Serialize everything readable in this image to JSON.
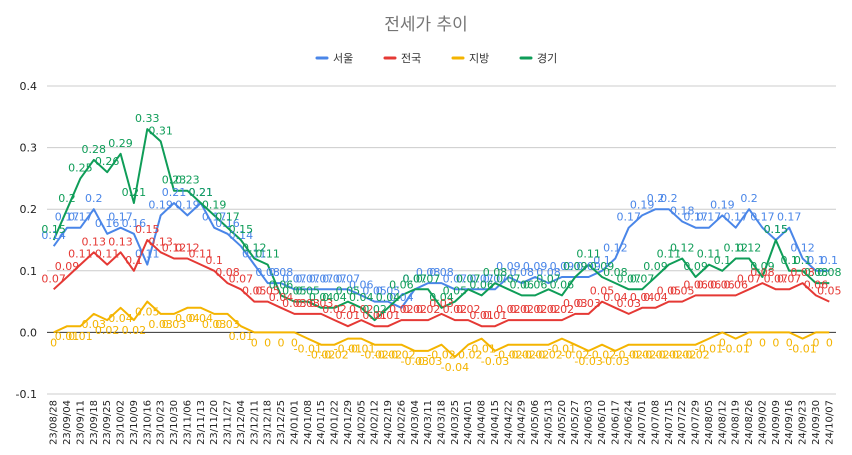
{
  "chart_data": {
    "type": "line",
    "title": "전세가 추이",
    "legend_position": "top",
    "ylim": [
      -0.1,
      0.4
    ],
    "yticks": [
      -0.1,
      0.0,
      0.1,
      0.2,
      0.3,
      0.4
    ],
    "ytick_labels": [
      "-0.1",
      "0.0",
      "0.1",
      "0.2",
      "0.3",
      "0.4"
    ],
    "grid": "horizontal",
    "x": [
      "23/08/28",
      "23/09/04",
      "23/09/11",
      "23/09/18",
      "23/09/25",
      "23/10/02",
      "23/10/09",
      "23/10/16",
      "23/10/23",
      "23/10/30",
      "23/11/06",
      "23/11/13",
      "23/11/20",
      "23/11/27",
      "23/12/04",
      "23/12/11",
      "23/12/18",
      "23/12/25",
      "24/01/01",
      "24/01/08",
      "24/01/15",
      "24/01/22",
      "24/01/29",
      "24/02/05",
      "24/02/12",
      "24/02/19",
      "24/02/26",
      "24/03/04",
      "24/03/11",
      "24/03/18",
      "24/03/25",
      "24/04/01",
      "24/04/08",
      "24/04/15",
      "24/04/22",
      "24/04/29",
      "24/05/06",
      "24/05/13",
      "24/05/20",
      "24/05/27",
      "24/06/03",
      "24/06/10",
      "24/06/17",
      "24/06/24",
      "24/07/01",
      "24/07/08",
      "24/07/15",
      "24/07/22",
      "24/07/29",
      "24/08/05",
      "24/08/12",
      "24/08/19",
      "24/08/26",
      "24/09/02",
      "24/09/09",
      "24/09/16",
      "24/09/23",
      "24/09/30",
      "24/10/07"
    ],
    "x_tick_labels": [
      "23/08/28",
      "23/09/04",
      "23/09/11",
      "23/09/18",
      "23/09/25",
      "23/10/02",
      "23/10/09",
      "23/10/16",
      "23/10/23",
      "23/10/30",
      "23/11/06",
      "23/11/13",
      "23/11/20",
      "23/11/27",
      "23/12/04",
      "23/12/11",
      "23/12/18",
      "23/12/25",
      "24/01/01",
      "24/01/08",
      "24/01/15",
      "24/01/22",
      "24/01/29",
      "24/02/05",
      "24/02/12",
      "24/02/19",
      "24/02/26",
      "24/03/04",
      "24/03/11",
      "24/03/18",
      "24/03/25",
      "24/04/01",
      "24/04/08",
      "24/04/15",
      "24/04/22",
      "24/04/29",
      "24/05/06",
      "24/05/13",
      "24/05/20",
      "24/05/27",
      "24/06/03",
      "24/06/10",
      "24/06/17",
      "24/06/24",
      "24/07/01",
      "24/07/08",
      "24/07/15",
      "24/07/22",
      "24/07/29",
      "24/08/05",
      "24/08/12",
      "24/08/19",
      "24/08/26",
      "24/09/02",
      "24/09/09",
      "24/09/16",
      "24/09/23",
      "24/09/30",
      "24/10/07"
    ],
    "series": [
      {
        "name": "서울",
        "color": "#4a86e8",
        "values": [
          0.14,
          0.17,
          0.17,
          0.2,
          0.16,
          0.17,
          0.16,
          0.11,
          0.19,
          0.21,
          0.19,
          0.21,
          0.17,
          0.16,
          0.14,
          0.11,
          0.08,
          0.08,
          0.07,
          0.07,
          0.07,
          0.07,
          0.07,
          0.06,
          0.05,
          0.05,
          0.04,
          0.07,
          0.08,
          0.08,
          0.07,
          0.07,
          0.07,
          0.07,
          0.09,
          0.08,
          0.09,
          0.08,
          0.09,
          0.09,
          0.09,
          0.1,
          0.12,
          0.17,
          0.19,
          0.2,
          0.2,
          0.18,
          0.17,
          0.17,
          0.19,
          0.17,
          0.2,
          0.17,
          0.15,
          0.17,
          0.12,
          0.1,
          0.1
        ]
      },
      {
        "name": "전국",
        "color": "#e53935",
        "values": [
          0.07,
          0.09,
          0.11,
          0.13,
          0.11,
          0.13,
          0.1,
          0.15,
          0.13,
          0.12,
          0.12,
          0.11,
          0.1,
          0.08,
          0.07,
          0.05,
          0.05,
          0.04,
          0.03,
          0.03,
          0.03,
          0.02,
          0.01,
          0.02,
          0.01,
          0.01,
          0.02,
          0.02,
          0.02,
          0.03,
          0.02,
          0.02,
          0.01,
          0.01,
          0.02,
          0.02,
          0.02,
          0.02,
          0.02,
          0.03,
          0.03,
          0.05,
          0.04,
          0.03,
          0.04,
          0.04,
          0.05,
          0.05,
          0.06,
          0.06,
          0.06,
          0.06,
          0.07,
          0.08,
          0.07,
          0.07,
          0.08,
          0.06,
          0.05
        ]
      },
      {
        "name": "지방",
        "color": "#f4b400",
        "values": [
          0.0,
          0.01,
          0.01,
          0.03,
          0.02,
          0.04,
          0.02,
          0.05,
          0.03,
          0.03,
          0.04,
          0.04,
          0.03,
          0.03,
          0.01,
          0.0,
          0.0,
          0.0,
          0.0,
          -0.01,
          -0.02,
          -0.02,
          -0.01,
          -0.01,
          -0.02,
          -0.02,
          -0.02,
          -0.03,
          -0.03,
          -0.02,
          -0.04,
          -0.02,
          -0.01,
          -0.03,
          -0.02,
          -0.02,
          -0.02,
          -0.02,
          -0.01,
          -0.02,
          -0.03,
          -0.02,
          -0.03,
          -0.02,
          -0.02,
          -0.02,
          -0.02,
          -0.02,
          -0.02,
          -0.01,
          0.0,
          -0.01,
          0.0,
          0.0,
          0.0,
          0.0,
          -0.01,
          0.0,
          0.0
        ]
      },
      {
        "name": "경기",
        "color": "#0f9d58",
        "values": [
          0.15,
          0.2,
          0.25,
          0.28,
          0.26,
          0.29,
          0.21,
          0.33,
          0.31,
          0.23,
          0.23,
          0.21,
          0.19,
          0.17,
          0.15,
          0.12,
          0.11,
          0.06,
          0.05,
          0.05,
          0.04,
          0.04,
          0.05,
          0.04,
          0.02,
          0.04,
          0.06,
          0.07,
          0.07,
          0.04,
          0.05,
          0.07,
          0.06,
          0.08,
          0.07,
          0.06,
          0.06,
          0.07,
          0.06,
          0.09,
          0.11,
          0.09,
          0.08,
          0.07,
          0.07,
          0.09,
          0.11,
          0.12,
          0.09,
          0.11,
          0.1,
          0.12,
          0.12,
          0.09,
          0.15,
          0.1,
          0.1,
          0.08,
          0.08
        ]
      }
    ]
  }
}
